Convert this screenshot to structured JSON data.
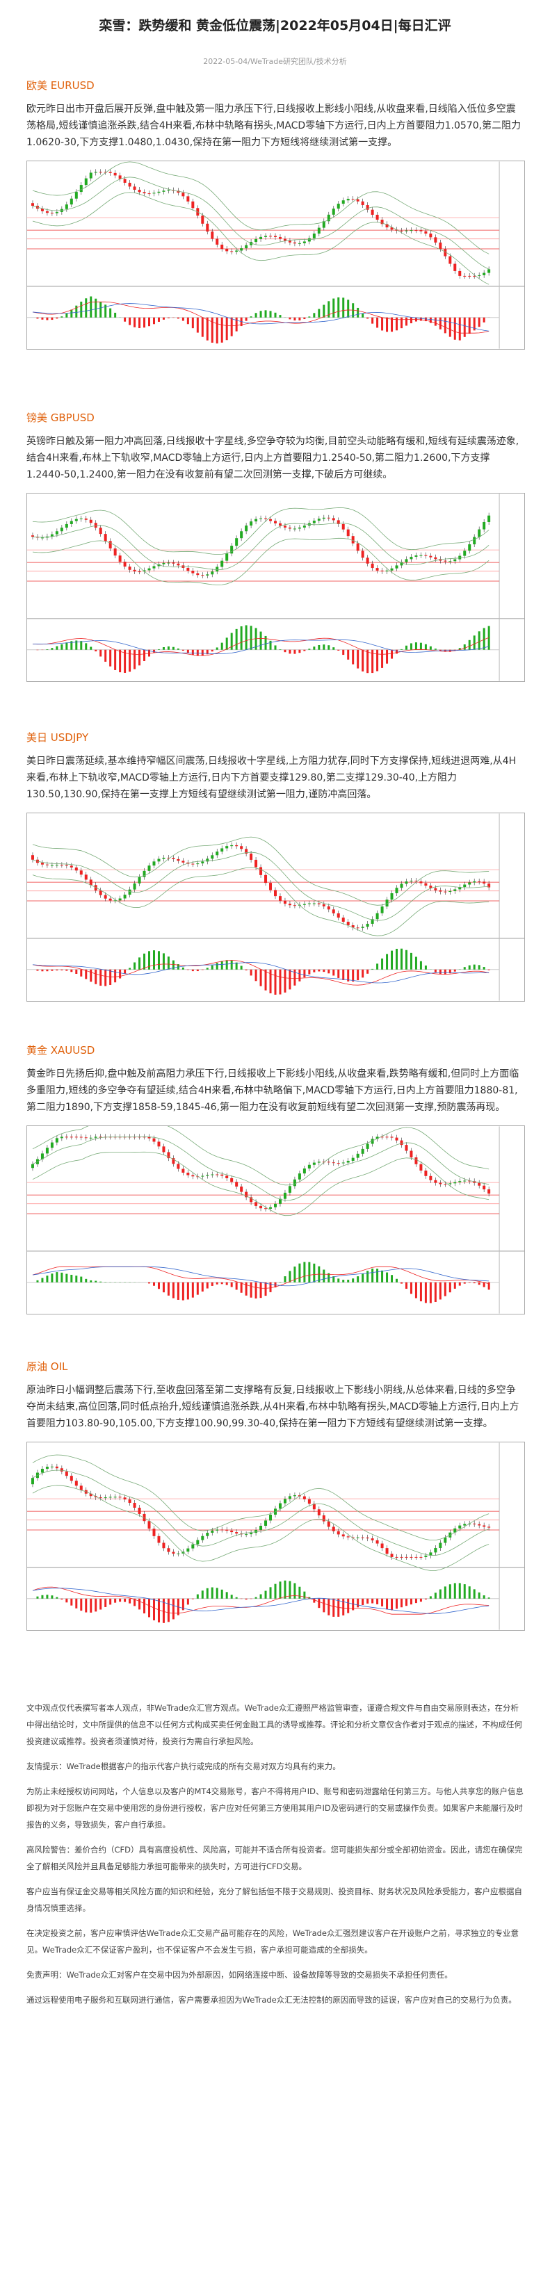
{
  "header": {
    "title": "栾雪：跌势缓和 黄金低位震荡|2022年05月04日|每日汇评",
    "subtitle": "2022-05-04/WeTrade研究团队/技术分析"
  },
  "sections": [
    {
      "heading": "欧美 EURUSD",
      "text": "欧元昨日出市开盘后展开反弹,盘中触及第一阻力承压下行,日线报收上影线小阳线,从收盘来看,日线陷入低位多空震荡格局,短线谨慎追涨杀跌,结合4H来看,布林中轨略有拐头,MACD零轴下方运行,日内上方首要阻力1.0570,第二阻力1.0620-30,下方支撑1.0480,1.0430,保持在第一阻力下方短线将继续测试第一支撑。"
    },
    {
      "heading": "镑美 GBPUSD",
      "text": "英镑昨日触及第一阻力冲高回落,日线报收十字星线,多空争夺较为均衡,目前空头动能略有缓和,短线有延续震荡迹象,结合4H来看,布林上下轨收窄,MACD零轴上方运行,日内上方首要阻力1.2540-50,第二阻力1.2600,下方支撑1.2440-50,1.2400,第一阻力在没有收复前有望二次回测第一支撑,下破后方可继续。"
    },
    {
      "heading": "美日 USDJPY",
      "text": "美日昨日震荡延续,基本维持窄幅区间震荡,日线报收十字星线,上方阻力犹存,同时下方支撑保持,短线进退两难,从4H来看,布林上下轨收窄,MACD零轴上方运行,日内下方首要支撑129.80,第二支撑129.30-40,上方阻力130.50,130.90,保持在第一支撑上方短线有望继续测试第一阻力,谨防冲高回落。"
    },
    {
      "heading": "黄金 XAUUSD",
      "text": "黄金昨日先扬后抑,盘中触及前高阻力承压下行,日线报收上下影线小阳线,从收盘来看,跌势略有缓和,但同时上方面临多重阻力,短线的多空争夺有望延续,结合4H来看,布林中轨略偏下,MACD零轴下方运行,日内上方首要阻力1880-81,第二阻力1890,下方支撑1858-59,1845-46,第一阻力在没有收复前短线有望二次回测第一支撑,预防震荡再现。"
    },
    {
      "heading": "原油 OIL",
      "text": "原油昨日小幅调整后震荡下行,至收盘回落至第二支撑略有反复,日线报收上下影线小阴线,从总体来看,日线的多空争夺尚未结束,高位回落,同时低点抬升,短线谨慎追涨杀跌,从4H来看,布林中轨略有拐头,MACD零轴上方运行,日内上方首要阻力103.80-90,105.00,下方支撑100.90,99.30-40,保持在第一阻力下方短线有望继续测试第一支撑。"
    }
  ],
  "disclaimer": [
    "文中观点仅代表撰写者本人观点，非WeTrade众汇官方观点。WeTrade众汇遵照严格监管审查，谨遵合规文件与自由交易原则表达，在分析中得出结论时，文中所提供的信息不以任何方式构成买卖任何金融工具的诱导或推荐。评论和分析文章仅含作者对于观点的描述，不构成任何投资建议或推荐。投资者须谨慎对待，投资行为需自行承担风险。",
    "友情提示：WeTrade根据客户的指示代客户执行或完成的所有交易对双方均具有约束力。",
    "为防止未经授权访问网站，个人信息以及客户的MT4交易账号，客户不得将用户ID、账号和密码泄露给任何第三方。与他人共享您的账户信息即视为对于您账户在交易中使用您的身份进行授权，客户应对任何第三方使用其用户ID及密码进行的交易或操作负责。如果客户未能履行及时报告的义务，导致损失，客户自行承担。",
    "高风险警告：差价合约（CFD）具有高度投机性、风险高，可能并不适合所有投资者。您可能损失部分或全部初始资金。因此，请您在确保完全了解相关风险并且具备足够能力承担可能带来的损失时，方可进行CFD交易。",
    "客户应当有保证金交易等相关风险方面的知识和经验，充分了解包括但不限于交易规则、投资目标、财务状况及风险承受能力，客户应根据自身情况慎重选择。",
    "在决定投资之前，客户应审慎评估WeTrade众汇交易产品可能存在的风险，WeTrade众汇强烈建议客户在开设账户之前，寻求独立的专业意见。WeTrade众汇不保证客户盈利，也不保证客户不会发生亏损，客户承担可能造成的全部损失。",
    "免责声明：WeTrade众汇对客户在交易中因为外部原因，如网络连接中断、设备故障等导致的交易损失不承担任何责任。",
    "通过远程使用电子服务和互联网进行通信，客户需要承担因为WeTrade众汇无法控制的原因而导致的延误，客户应对自己的交易行为负责。"
  ]
}
